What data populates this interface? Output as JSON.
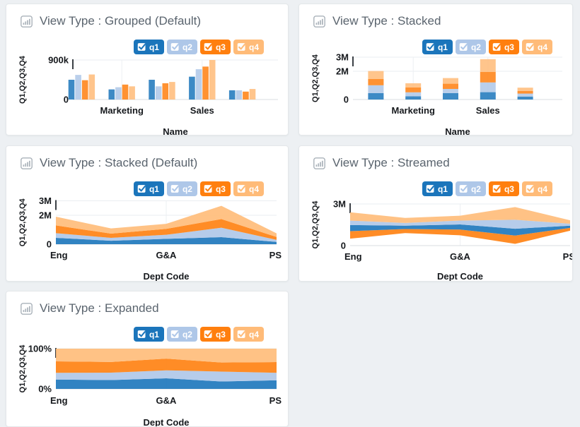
{
  "page": {
    "background": "#edf0f3",
    "accent_colors": [
      "#1b75bb",
      "#aec7e8",
      "#ff7f0e",
      "#ffbb78"
    ]
  },
  "legend": {
    "items": [
      {
        "id": "q1",
        "label": "q1",
        "checked": true,
        "color": "#1b75bb"
      },
      {
        "id": "q2",
        "label": "q2",
        "checked": true,
        "color": "#aec7e8"
      },
      {
        "id": "q3",
        "label": "q3",
        "checked": true,
        "color": "#ff7f0e"
      },
      {
        "id": "q4",
        "label": "q4",
        "checked": true,
        "color": "#ffbb78"
      }
    ]
  },
  "panels": [
    {
      "title": "View Type : Grouped (Default)"
    },
    {
      "title": "View Type : Stacked"
    },
    {
      "title": "View Type : Stacked (Default)"
    },
    {
      "title": "View Type : Streamed"
    },
    {
      "title": "View Type : Expanded"
    }
  ],
  "chart_data": [
    {
      "type": "bar",
      "mode": "grouped",
      "xlabel": "Name",
      "ylabel": "Q1,Q2,Q3,Q4",
      "categories": [
        "",
        "Marketing",
        "",
        "Sales",
        ""
      ],
      "series": [
        {
          "name": "q1",
          "color": "#1b75bb",
          "values": [
            450000,
            230000,
            450000,
            520000,
            210000
          ]
        },
        {
          "name": "q2",
          "color": "#aec7e8",
          "values": [
            560000,
            280000,
            300000,
            690000,
            210000
          ]
        },
        {
          "name": "q3",
          "color": "#ff7f0e",
          "values": [
            440000,
            340000,
            370000,
            750000,
            180000
          ]
        },
        {
          "name": "q4",
          "color": "#ffbb78",
          "values": [
            570000,
            300000,
            400000,
            900000,
            240000
          ]
        }
      ],
      "yticks": [
        {
          "v": 900000,
          "label": "900k"
        },
        {
          "v": 0,
          "label": "0"
        }
      ],
      "ylim": [
        0,
        900000
      ],
      "grid": true,
      "legend_position": "top-right"
    },
    {
      "type": "bar",
      "mode": "stacked",
      "xlabel": "Name",
      "ylabel": "Q1,Q2,Q3,Q4",
      "categories": [
        "",
        "Marketing",
        "",
        "Sales",
        ""
      ],
      "series": [
        {
          "name": "q1",
          "color": "#1b75bb",
          "values": [
            450000,
            230000,
            450000,
            520000,
            210000
          ]
        },
        {
          "name": "q2",
          "color": "#aec7e8",
          "values": [
            560000,
            280000,
            300000,
            690000,
            210000
          ]
        },
        {
          "name": "q3",
          "color": "#ff7f0e",
          "values": [
            440000,
            340000,
            370000,
            750000,
            180000
          ]
        },
        {
          "name": "q4",
          "color": "#ffbb78",
          "values": [
            570000,
            300000,
            400000,
            900000,
            240000
          ]
        }
      ],
      "yticks": [
        {
          "v": 3000000,
          "label": "3M"
        },
        {
          "v": 2000000,
          "label": "2M"
        },
        {
          "v": 0,
          "label": "0"
        }
      ],
      "ylim": [
        0,
        3000000
      ],
      "grid": true,
      "legend_position": "top-right"
    },
    {
      "type": "area",
      "mode": "stacked",
      "xlabel": "Dept Code",
      "ylabel": "Q1,Q2,Q3,Q4",
      "categories": [
        "Eng",
        "",
        "G&A",
        "",
        "PS"
      ],
      "series": [
        {
          "name": "q1",
          "color": "#1b75bb",
          "values": [
            440000,
            240000,
            370000,
            490000,
            160000
          ]
        },
        {
          "name": "q2",
          "color": "#aec7e8",
          "values": [
            320000,
            200000,
            280000,
            650000,
            140000
          ]
        },
        {
          "name": "q3",
          "color": "#ff7f0e",
          "values": [
            540000,
            290000,
            410000,
            600000,
            200000
          ]
        },
        {
          "name": "q4",
          "color": "#ffbb78",
          "values": [
            600000,
            360000,
            350000,
            910000,
            250000
          ]
        }
      ],
      "yticks": [
        {
          "v": 3000000,
          "label": "3M"
        },
        {
          "v": 2000000,
          "label": "2M"
        },
        {
          "v": 0,
          "label": "0"
        }
      ],
      "ylim": [
        0,
        3000000
      ],
      "grid": true,
      "legend_position": "top-right"
    },
    {
      "type": "area",
      "mode": "stream",
      "xlabel": "Dept Code",
      "ylabel": "Q1,Q2,Q3,Q4",
      "categories": [
        "Eng",
        "",
        "G&A",
        "",
        "PS"
      ],
      "stack_order": [
        "q3",
        "q1",
        "q2",
        "q4"
      ],
      "center": 1450000,
      "series": [
        {
          "name": "q1",
          "color": "#1b75bb",
          "values": [
            440000,
            240000,
            370000,
            490000,
            160000
          ]
        },
        {
          "name": "q2",
          "color": "#aec7e8",
          "values": [
            320000,
            200000,
            280000,
            650000,
            140000
          ]
        },
        {
          "name": "q3",
          "color": "#ff7f0e",
          "values": [
            540000,
            290000,
            410000,
            600000,
            200000
          ]
        },
        {
          "name": "q4",
          "color": "#ffbb78",
          "values": [
            600000,
            360000,
            350000,
            910000,
            250000
          ]
        }
      ],
      "yticks": [
        {
          "v": 3000000,
          "label": "3M"
        },
        {
          "v": 0,
          "label": "0"
        }
      ],
      "ylim": [
        0,
        3000000
      ],
      "grid": true,
      "legend_position": "top-right"
    },
    {
      "type": "area",
      "mode": "expanded",
      "xlabel": "Dept Code",
      "ylabel": "Q1,Q2,Q3,Q4",
      "categories": [
        "Eng",
        "",
        "G&A",
        "",
        "PS"
      ],
      "series": [
        {
          "name": "q1",
          "color": "#1b75bb",
          "values": [
            440000,
            240000,
            370000,
            490000,
            160000
          ]
        },
        {
          "name": "q2",
          "color": "#aec7e8",
          "values": [
            320000,
            200000,
            280000,
            650000,
            140000
          ]
        },
        {
          "name": "q3",
          "color": "#ff7f0e",
          "values": [
            540000,
            290000,
            410000,
            600000,
            200000
          ]
        },
        {
          "name": "q4",
          "color": "#ffbb78",
          "values": [
            600000,
            360000,
            350000,
            910000,
            250000
          ]
        }
      ],
      "yticks": [
        {
          "v": 100,
          "label": "100%"
        },
        {
          "v": 0,
          "label": "0%"
        }
      ],
      "ylim": [
        0,
        100
      ],
      "grid": true,
      "legend_position": "top-right"
    }
  ]
}
